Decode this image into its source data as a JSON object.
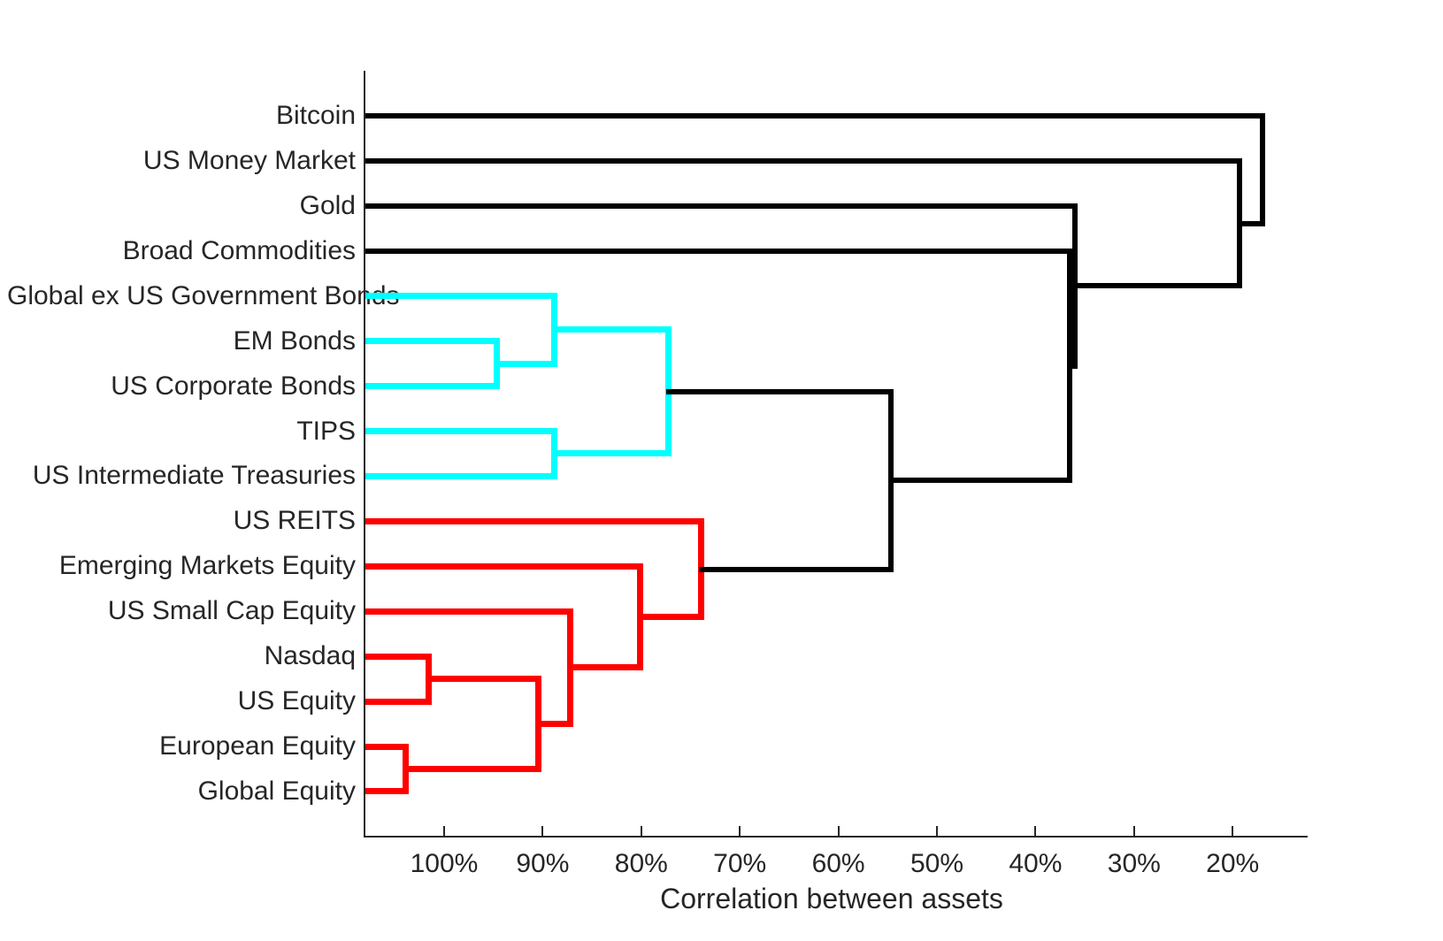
{
  "axis": {
    "xlabel": "Correlation between assets",
    "ticks": [
      {
        "label": "100%",
        "pct": 100
      },
      {
        "label": "90%",
        "pct": 90
      },
      {
        "label": "80%",
        "pct": 80
      },
      {
        "label": "70%",
        "pct": 70
      },
      {
        "label": "60%",
        "pct": 60
      },
      {
        "label": "50%",
        "pct": 50
      },
      {
        "label": "40%",
        "pct": 40
      },
      {
        "label": "30%",
        "pct": 30
      },
      {
        "label": "20%",
        "pct": 20
      }
    ]
  },
  "colors": {
    "black_cluster": "#000000",
    "cyan_cluster": "#00ffff",
    "red_cluster": "#ff0000",
    "text": "#262626",
    "axis_line": "#262626",
    "background": "#ffffff"
  },
  "chart_data": {
    "type": "dendrogram",
    "orientation": "horizontal, leaves on left, correlation decreasing to the right",
    "title": "",
    "xlabel": "Correlation between assets",
    "x_tick_labels": [
      "100%",
      "90%",
      "80%",
      "70%",
      "60%",
      "50%",
      "40%",
      "30%",
      "20%"
    ],
    "x_axis_direction": "reversed (100% at left, 20% at right)",
    "leaves": [
      {
        "label": "Bitcoin",
        "row": 0,
        "cluster": "black"
      },
      {
        "label": "US Money Market",
        "row": 1,
        "cluster": "black"
      },
      {
        "label": "Gold",
        "row": 2,
        "cluster": "black"
      },
      {
        "label": "Broad Commodities",
        "row": 3,
        "cluster": "black"
      },
      {
        "label": "Global ex US Government Bonds",
        "row": 4,
        "cluster": "cyan"
      },
      {
        "label": "EM Bonds",
        "row": 5,
        "cluster": "cyan"
      },
      {
        "label": "US Corporate Bonds",
        "row": 6,
        "cluster": "cyan"
      },
      {
        "label": "TIPS",
        "row": 7,
        "cluster": "cyan"
      },
      {
        "label": "US Intermediate Treasuries",
        "row": 8,
        "cluster": "cyan"
      },
      {
        "label": "US REITS",
        "row": 9,
        "cluster": "red"
      },
      {
        "label": "Emerging Markets Equity",
        "row": 10,
        "cluster": "red"
      },
      {
        "label": "US Small Cap Equity",
        "row": 11,
        "cluster": "red"
      },
      {
        "label": "Nasdaq",
        "row": 12,
        "cluster": "red"
      },
      {
        "label": "US Equity",
        "row": 13,
        "cluster": "red"
      },
      {
        "label": "European Equity",
        "row": 14,
        "cluster": "red"
      },
      {
        "label": "Global Equity",
        "row": 15,
        "cluster": "red"
      }
    ],
    "merges": [
      {
        "id": "nasdaq-usequity",
        "children": [
          "Nasdaq",
          "US Equity"
        ],
        "at_pct": 101.6,
        "color": "red"
      },
      {
        "id": "europe-global",
        "children": [
          "European Equity",
          "Global Equity"
        ],
        "at_pct": 103.9,
        "color": "red"
      },
      {
        "id": "dev-equity",
        "children": [
          "nasdaq-usequity",
          "europe-global"
        ],
        "at_pct": 90.4,
        "color": "red"
      },
      {
        "id": "smallcap-join",
        "children": [
          "US Small Cap Equity",
          "dev-equity"
        ],
        "at_pct": 87.2,
        "color": "red"
      },
      {
        "id": "em-equity-join",
        "children": [
          "Emerging Markets Equity",
          "smallcap-join"
        ],
        "at_pct": 80.1,
        "color": "red"
      },
      {
        "id": "reits-join",
        "children": [
          "US REITS",
          "em-equity-join"
        ],
        "at_pct": 73.9,
        "color": "red"
      },
      {
        "id": "embonds-corp",
        "children": [
          "EM Bonds",
          "US Corporate Bonds"
        ],
        "at_pct": 94.7,
        "color": "cyan"
      },
      {
        "id": "globalgov-join",
        "children": [
          "Global ex US Government Bonds",
          "embonds-corp"
        ],
        "at_pct": 88.8,
        "color": "cyan"
      },
      {
        "id": "tips-treasuries",
        "children": [
          "TIPS",
          "US Intermediate Treasuries"
        ],
        "at_pct": 88.8,
        "color": "cyan"
      },
      {
        "id": "bonds-cluster",
        "children": [
          "globalgov-join",
          "tips-treasuries"
        ],
        "at_pct": 77.2,
        "color": "cyan"
      },
      {
        "id": "bonds-equities",
        "children": [
          "bonds-cluster",
          "reits-join"
        ],
        "at_pct": 54.7,
        "color": "black"
      },
      {
        "id": "commodities-join",
        "children": [
          "Broad Commodities",
          "bonds-equities"
        ],
        "at_pct": 36.5,
        "color": "black"
      },
      {
        "id": "gold-join",
        "children": [
          "Gold",
          "commodities-join"
        ],
        "at_pct": 36.0,
        "color": "black"
      },
      {
        "id": "moneymarket-join",
        "children": [
          "US Money Market",
          "gold-join"
        ],
        "at_pct": 19.3,
        "color": "black"
      },
      {
        "id": "bitcoin-join",
        "children": [
          "Bitcoin",
          "moneymarket-join"
        ],
        "at_pct": 17.0,
        "color": "black"
      }
    ],
    "legend_position": "none",
    "grid": false
  }
}
